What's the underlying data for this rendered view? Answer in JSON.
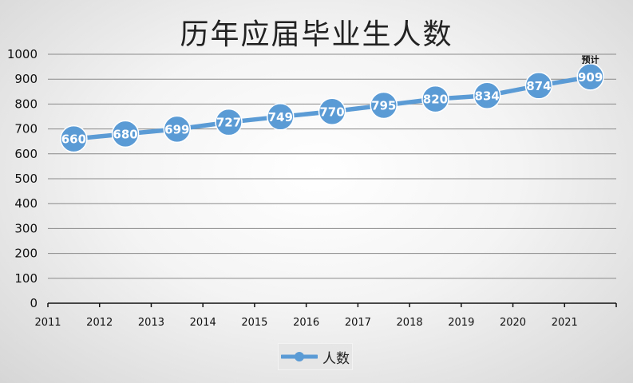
{
  "chart_data": {
    "type": "line",
    "title": "历年应届毕业生人数",
    "xlabel": "",
    "ylabel": "",
    "x_tick_labels": [
      "2011",
      "2012",
      "2013",
      "2014",
      "2015",
      "2016",
      "2017",
      "2018",
      "2019",
      "2020",
      "2021"
    ],
    "y_tick_labels": [
      "0",
      "100",
      "200",
      "300",
      "400",
      "500",
      "600",
      "700",
      "800",
      "900",
      "1000"
    ],
    "ylim": [
      0,
      1000
    ],
    "grid": true,
    "legend_position": "bottom",
    "series": [
      {
        "name": "人数",
        "color": "#5b9bd5",
        "values": [
          660,
          680,
          699,
          727,
          749,
          770,
          795,
          820,
          834,
          874,
          909
        ]
      }
    ],
    "annotations": [
      {
        "point_index": 10,
        "text": "预计"
      }
    ]
  }
}
